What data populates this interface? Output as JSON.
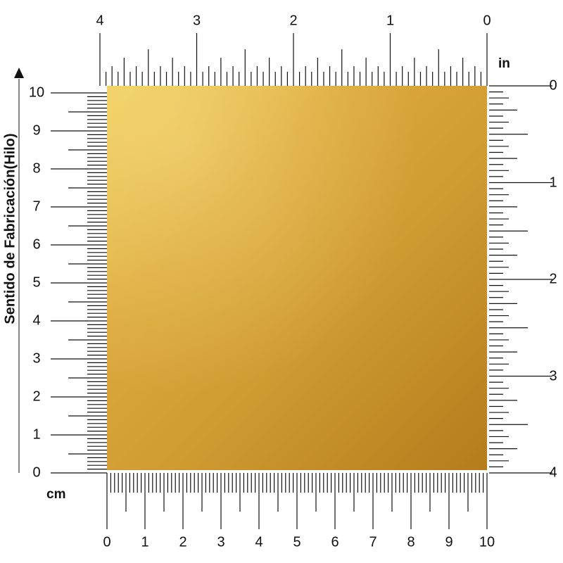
{
  "paper": {
    "color_light": "#f0cc5c",
    "color_dark": "#b57c1c"
  },
  "top_ruler": {
    "unit": "in",
    "labels": [
      "4",
      "3",
      "2",
      "1",
      "0"
    ]
  },
  "right_ruler": {
    "labels": [
      "0",
      "1",
      "2",
      "3",
      "4"
    ]
  },
  "left_ruler": {
    "unit": "cm",
    "labels": [
      "0",
      "1",
      "2",
      "3",
      "4",
      "5",
      "6",
      "7",
      "8",
      "9",
      "10"
    ]
  },
  "bottom_ruler": {
    "labels": [
      "0",
      "1",
      "2",
      "3",
      "4",
      "5",
      "6",
      "7",
      "8",
      "9",
      "10"
    ]
  },
  "grain_direction": {
    "label": "Sentido de Fabricación(Hilo)",
    "icon": "arrow-up-icon"
  }
}
